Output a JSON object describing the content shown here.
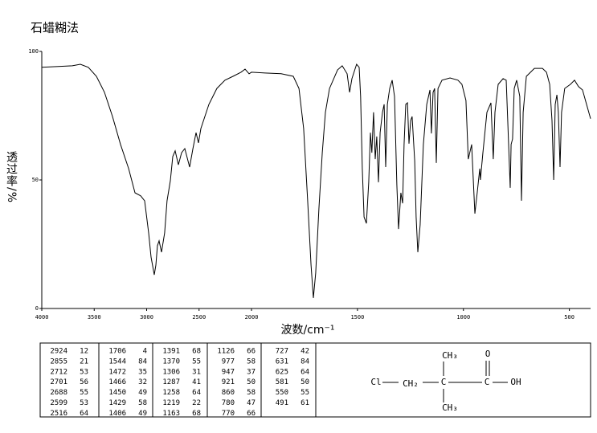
{
  "chart_data": {
    "type": "line",
    "title": "石蜡糊法",
    "ylabel": "透过率/%",
    "xlabel": "波数/cm⁻¹",
    "color": "#000000",
    "xlim": [
      4000,
      400
    ],
    "x_scale_break": 2000,
    "ylim": [
      0,
      100
    ],
    "xticks": [
      4000,
      3500,
      3000,
      2500,
      2000,
      1500,
      1000,
      500
    ],
    "yticks": [
      0,
      50,
      100
    ],
    "grid": false,
    "x": [
      4000,
      3862,
      3709,
      3632,
      3556,
      3479,
      3402,
      3326,
      3249,
      3172,
      3111,
      3057,
      3019,
      2981,
      2958,
      2927,
      2912,
      2897,
      2881,
      2858,
      2828,
      2805,
      2774,
      2751,
      2728,
      2697,
      2667,
      2636,
      2590,
      2559,
      2529,
      2506,
      2483,
      2406,
      2330,
      2253,
      2176,
      2100,
      2061,
      2023,
      2000,
      1936,
      1860,
      1803,
      1776,
      1754,
      1735,
      1719,
      1708,
      1697,
      1682,
      1666,
      1651,
      1632,
      1594,
      1572,
      1549,
      1537,
      1526,
      1504,
      1492,
      1485,
      1477,
      1469,
      1458,
      1447,
      1439,
      1432,
      1424,
      1416,
      1409,
      1401,
      1393,
      1382,
      1374,
      1367,
      1359,
      1348,
      1336,
      1325,
      1314,
      1306,
      1295,
      1287,
      1280,
      1272,
      1264,
      1257,
      1249,
      1242,
      1230,
      1223,
      1215,
      1204,
      1189,
      1173,
      1158,
      1151,
      1143,
      1136,
      1128,
      1120,
      1101,
      1063,
      1026,
      1007,
      988,
      977,
      961,
      946,
      935,
      923,
      920,
      908,
      889,
      870,
      859,
      851,
      836,
      813,
      798,
      791,
      779,
      775,
      768,
      760,
      749,
      734,
      726,
      718,
      703,
      665,
      627,
      608,
      593,
      582,
      574,
      567,
      559,
      552,
      544,
      537,
      522,
      495,
      476,
      457,
      438,
      419,
      400
    ],
    "values": [
      93.8,
      94.1,
      94.4,
      95.0,
      93.8,
      90.3,
      84.1,
      74.7,
      63.8,
      54.4,
      45.0,
      43.8,
      41.9,
      29.4,
      20.0,
      13.1,
      16.9,
      24.4,
      26.3,
      21.9,
      29.4,
      41.9,
      49.7,
      59.1,
      61.3,
      55.9,
      60.6,
      62.2,
      55.0,
      62.2,
      68.4,
      64.4,
      70.0,
      79.4,
      85.6,
      88.8,
      90.3,
      91.9,
      93.1,
      91.3,
      91.9,
      91.6,
      91.3,
      90.3,
      85.6,
      70.0,
      41.9,
      16.9,
      4.1,
      13.8,
      38.8,
      60.6,
      76.3,
      85.6,
      92.8,
      94.4,
      91.3,
      84.1,
      89.4,
      95.0,
      93.8,
      82.5,
      54.4,
      35.6,
      33.1,
      49.1,
      68.4,
      60.6,
      76.3,
      58.1,
      66.9,
      49.1,
      68.4,
      76.3,
      79.4,
      55.0,
      79.4,
      85.6,
      88.8,
      82.5,
      48.1,
      30.9,
      45.0,
      40.9,
      63.8,
      79.4,
      80.0,
      64.1,
      73.1,
      74.7,
      57.5,
      35.6,
      21.9,
      32.5,
      63.8,
      79.4,
      85.0,
      68.1,
      84.1,
      85.6,
      56.6,
      85.6,
      88.8,
      89.7,
      88.8,
      87.2,
      80.9,
      58.1,
      63.8,
      36.9,
      45.0,
      54.4,
      50.0,
      60.6,
      76.3,
      80.0,
      58.1,
      76.3,
      87.2,
      89.4,
      88.8,
      73.1,
      46.9,
      63.8,
      65.9,
      85.6,
      88.8,
      82.5,
      41.9,
      76.3,
      90.3,
      93.4,
      93.4,
      91.9,
      87.2,
      73.1,
      50.0,
      79.4,
      83.1,
      76.3,
      55.0,
      76.3,
      85.6,
      87.2,
      88.8,
      86.3,
      85.0,
      79.4,
      73.8
    ]
  },
  "peak_table": [
    [
      [
        2924,
        12
      ],
      [
        2855,
        21
      ],
      [
        2712,
        53
      ],
      [
        2701,
        56
      ],
      [
        2688,
        55
      ],
      [
        2599,
        53
      ],
      [
        2516,
        64
      ]
    ],
    [
      [
        1706,
        4
      ],
      [
        1544,
        84
      ],
      [
        1472,
        35
      ],
      [
        1466,
        32
      ],
      [
        1450,
        49
      ],
      [
        1429,
        58
      ],
      [
        1406,
        49
      ]
    ],
    [
      [
        1391,
        68
      ],
      [
        1370,
        55
      ],
      [
        1306,
        31
      ],
      [
        1287,
        41
      ],
      [
        1258,
        64
      ],
      [
        1219,
        22
      ],
      [
        1163,
        68
      ]
    ],
    [
      [
        1126,
        66
      ],
      [
        977,
        58
      ],
      [
        947,
        37
      ],
      [
        921,
        50
      ],
      [
        860,
        58
      ],
      [
        780,
        47
      ],
      [
        770,
        66
      ]
    ],
    [
      [
        727,
        42
      ],
      [
        631,
        84
      ],
      [
        625,
        64
      ],
      [
        581,
        50
      ],
      [
        550,
        55
      ],
      [
        491,
        61
      ]
    ]
  ],
  "structure": {
    "labels": [
      "Cl",
      "CH₂",
      "C",
      "CH₃",
      "CH₃",
      "C",
      "O",
      "OH"
    ]
  }
}
